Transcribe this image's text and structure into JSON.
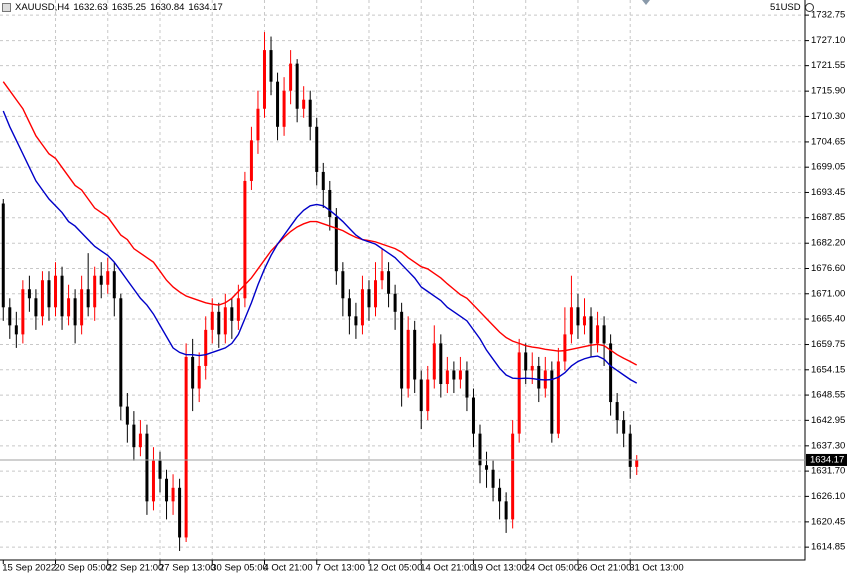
{
  "chart_data": {
    "type": "candlestick",
    "title": "XAUUSD,H4",
    "broker_label": "51USD",
    "up_color": "#ff0000",
    "down_color": "#000000",
    "grid": true,
    "ylim": [
      1612,
      1736.1
    ],
    "yticks": [
      1732.75,
      {
        "value": 1727.1,
        "label": "1727.10"
      },
      1721.55,
      {
        "value": 1715.9,
        "label": "1715.90"
      },
      {
        "value": 1710.3,
        "label": "1710.30"
      },
      1704.65,
      1699.05,
      1693.45,
      1687.85,
      {
        "value": 1682.2,
        "label": "1682.20"
      },
      {
        "value": 1676.6,
        "label": "1676.60"
      },
      {
        "value": 1671,
        "label": "1671.00"
      },
      {
        "value": 1665.4,
        "label": "1665.40"
      },
      1659.75,
      1654.15,
      1648.55,
      1642.95,
      {
        "value": 1637.3,
        "label": "1637.30"
      },
      {
        "value": 1631.7,
        "label": "1631.70"
      },
      {
        "value": 1626.1,
        "label": "1626.10"
      },
      1620.45,
      1614.85
    ],
    "categories": [
      "15 Sep 2022",
      null,
      null,
      null,
      null,
      null,
      null,
      null,
      "20 Sep 05:00",
      null,
      null,
      null,
      null,
      null,
      null,
      null,
      "22 Sep 21:00",
      null,
      null,
      null,
      null,
      null,
      null,
      null,
      "27 Sep 13:00",
      null,
      null,
      null,
      null,
      null,
      null,
      null,
      "30 Sep 05:00",
      null,
      null,
      null,
      null,
      null,
      null,
      null,
      "4 Oct 21:00",
      null,
      null,
      null,
      null,
      null,
      null,
      null,
      "7 Oct 13:00",
      null,
      null,
      null,
      null,
      null,
      null,
      null,
      "12 Oct 05:00",
      null,
      null,
      null,
      null,
      null,
      null,
      null,
      "14 Oct 21:00",
      null,
      null,
      null,
      null,
      null,
      null,
      null,
      "19 Oct 13:00",
      null,
      null,
      null,
      null,
      null,
      null,
      null,
      "24 Oct 05:00",
      null,
      null,
      null,
      null,
      null,
      null,
      null,
      "26 Oct 21:00",
      null,
      null,
      null,
      null,
      null,
      null,
      null,
      "31 Oct 13:00",
      null
    ],
    "open": [
      1691,
      1668,
      1664,
      1662,
      1672,
      1670,
      1666,
      1674,
      1668,
      1675,
      1666,
      1670,
      1664,
      1672,
      1668,
      1675,
      1673,
      1676,
      1670,
      1646,
      1642,
      1637,
      1640,
      1625,
      1634,
      1630,
      1625,
      1628,
      1617,
      1657,
      1650,
      1655,
      1663,
      1667,
      1662,
      1668,
      1665,
      1670,
      1696,
      1705,
      1712,
      1725,
      1718,
      1708,
      1716,
      1722,
      1712,
      1714,
      1708,
      1698,
      1694,
      1688,
      1676,
      1670,
      1666,
      1664,
      1672,
      1668,
      1674,
      1676,
      1671,
      1667,
      1650,
      1663,
      1652,
      1645,
      1652,
      1660,
      1651,
      1654,
      1652,
      1654,
      1648,
      1640,
      1633,
      1632,
      1628,
      1625,
      1621,
      1640,
      1658,
      1654,
      1655,
      1650,
      1654,
      1640,
      1656,
      1662,
      1668,
      1664,
      1666,
      1660,
      1664,
      1660,
      1647,
      1643,
      1640,
      1632.63
    ],
    "high": [
      1692,
      1670,
      1667,
      1674,
      1675,
      1672,
      1676,
      1676,
      1678,
      1677,
      1673,
      1672,
      1675,
      1680,
      1677,
      1678,
      1679,
      1678,
      1671,
      1649,
      1645,
      1643,
      1642,
      1637,
      1636,
      1632,
      1631,
      1630,
      1660,
      1661,
      1658,
      1666,
      1670,
      1669,
      1671,
      1670,
      1673,
      1698,
      1708,
      1716,
      1729,
      1728,
      1720,
      1719,
      1725,
      1723,
      1717,
      1716,
      1710,
      1700,
      1696,
      1690,
      1678,
      1672,
      1669,
      1675,
      1674,
      1678,
      1681,
      1678,
      1673,
      1669,
      1666,
      1665,
      1654,
      1655,
      1664,
      1662,
      1657,
      1656,
      1657,
      1656,
      1650,
      1642,
      1636,
      1634,
      1630,
      1627,
      1643,
      1661,
      1660,
      1658,
      1657,
      1657,
      1656,
      1659,
      1668,
      1675,
      1671,
      1670,
      1668,
      1667,
      1666,
      1662,
      1649,
      1645,
      1642,
      1635.25
    ],
    "low": [
      1665,
      1661,
      1659,
      1660,
      1667,
      1663,
      1664,
      1665,
      1666,
      1663,
      1664,
      1660,
      1662,
      1666,
      1665,
      1670,
      1671,
      1666,
      1643,
      1638,
      1634,
      1635,
      1622,
      1623,
      1627,
      1621,
      1622,
      1614,
      1616,
      1645,
      1647,
      1652,
      1660,
      1659,
      1660,
      1661,
      1663,
      1668,
      1694,
      1702,
      1710,
      1715,
      1705,
      1706,
      1713,
      1709,
      1710,
      1705,
      1695,
      1690,
      1685,
      1673,
      1666,
      1662,
      1661,
      1662,
      1665,
      1666,
      1672,
      1668,
      1663,
      1646,
      1648,
      1649,
      1641,
      1643,
      1650,
      1648,
      1649,
      1649,
      1650,
      1645,
      1637,
      1629,
      1628,
      1625,
      1621,
      1618,
      1619,
      1638,
      1651,
      1651,
      1647,
      1648,
      1638,
      1639,
      1654,
      1660,
      1661,
      1662,
      1657,
      1658,
      1655,
      1644,
      1640,
      1637,
      1630,
      1630.84
    ],
    "close": [
      1668,
      1664,
      1662,
      1672,
      1670,
      1666,
      1674,
      1668,
      1675,
      1666,
      1670,
      1664,
      1672,
      1668,
      1675,
      1673,
      1676,
      1670,
      1646,
      1642,
      1637,
      1640,
      1625,
      1634,
      1630,
      1625,
      1628,
      1617,
      1657,
      1650,
      1655,
      1663,
      1667,
      1662,
      1668,
      1665,
      1670,
      1696,
      1705,
      1712,
      1725,
      1718,
      1708,
      1716,
      1722,
      1712,
      1714,
      1708,
      1698,
      1694,
      1688,
      1676,
      1670,
      1666,
      1664,
      1672,
      1668,
      1674,
      1676,
      1671,
      1667,
      1650,
      1663,
      1652,
      1645,
      1652,
      1660,
      1651,
      1654,
      1652,
      1654,
      1648,
      1640,
      1633,
      1632,
      1628,
      1625,
      1621,
      1640,
      1658,
      1654,
      1655,
      1650,
      1654,
      1640,
      1656,
      1662,
      1668,
      1664,
      1666,
      1660,
      1664,
      1660,
      1647,
      1643,
      1640,
      1632.63,
      1634.17
    ],
    "moving_averages": [
      {
        "color": "#ff0000",
        "values": [
          1718,
          1716,
          1714,
          1712,
          1709,
          1706,
          1704,
          1702,
          1701,
          1699,
          1697,
          1695,
          1694,
          1692,
          1690,
          1689,
          1688,
          1686,
          1684,
          1683,
          1681,
          1680,
          1679,
          1678,
          1676,
          1674,
          1672.5,
          1671.4,
          1670.5,
          1670,
          1669.5,
          1669,
          1668.7,
          1668.5,
          1669,
          1670,
          1671.5,
          1673,
          1674.5,
          1676.5,
          1678.5,
          1680.5,
          1682,
          1683.5,
          1684.8,
          1685.8,
          1686.5,
          1687,
          1687,
          1686.5,
          1686,
          1685.5,
          1685,
          1684.2,
          1683.5,
          1683,
          1682.8,
          1682.5,
          1682,
          1681.5,
          1681,
          1680.2,
          1679,
          1678,
          1677,
          1676.5,
          1675.5,
          1674.5,
          1673.2,
          1672,
          1670.8,
          1670,
          1668.5,
          1667,
          1665.5,
          1664,
          1662.5,
          1661.3,
          1660.5,
          1660,
          1659.5,
          1659.2,
          1659,
          1658.7,
          1658.5,
          1658.3,
          1658.4,
          1658.7,
          1659,
          1659.3,
          1659.6,
          1659.8,
          1659.5,
          1658.5,
          1657.5,
          1656.7,
          1656,
          1655.2
        ]
      },
      {
        "color": "#0000c8",
        "values": [
          1711.5,
          1708,
          1705,
          1702,
          1699,
          1696,
          1694,
          1692,
          1690.5,
          1689,
          1687,
          1686,
          1684.5,
          1683,
          1681.5,
          1680.5,
          1679.5,
          1678,
          1676,
          1674,
          1672,
          1670,
          1668.5,
          1666.5,
          1664,
          1661.5,
          1659,
          1658,
          1657.5,
          1657.5,
          1657.3,
          1657.5,
          1658,
          1658.5,
          1659,
          1660,
          1662,
          1665.5,
          1669,
          1673,
          1676.5,
          1679.5,
          1682,
          1684,
          1686,
          1688,
          1689.5,
          1690.5,
          1690.8,
          1690.5,
          1689.5,
          1688.3,
          1687,
          1685.5,
          1684,
          1683,
          1682.5,
          1682,
          1681,
          1680,
          1679,
          1677.5,
          1676,
          1674.5,
          1672.5,
          1671.5,
          1670.5,
          1669.5,
          1668,
          1667,
          1666,
          1665,
          1663,
          1661,
          1658.5,
          1656.5,
          1654.5,
          1653,
          1652.3,
          1652.2,
          1652.3,
          1652.2,
          1652,
          1651.9,
          1652,
          1652.5,
          1653.5,
          1655,
          1656,
          1656.6,
          1657,
          1657.2,
          1656.5,
          1655,
          1654,
          1653,
          1652,
          1651.2
        ]
      }
    ]
  }
}
